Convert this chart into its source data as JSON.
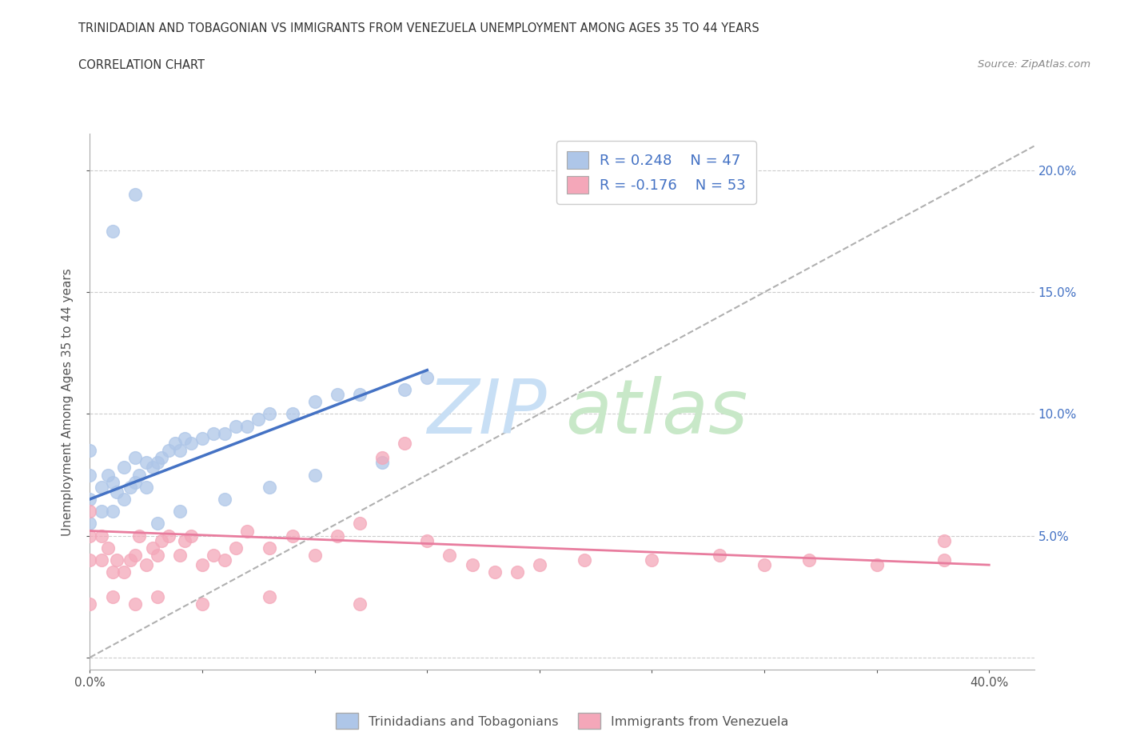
{
  "title_line1": "TRINIDADIAN AND TOBAGONIAN VS IMMIGRANTS FROM VENEZUELA UNEMPLOYMENT AMONG AGES 35 TO 44 YEARS",
  "title_line2": "CORRELATION CHART",
  "source_text": "Source: ZipAtlas.com",
  "ylabel": "Unemployment Among Ages 35 to 44 years",
  "xlim": [
    0.0,
    0.42
  ],
  "ylim": [
    -0.005,
    0.215
  ],
  "grid_color": "#cccccc",
  "blue_color": "#aec6e8",
  "pink_color": "#f4a7b9",
  "blue_line_color": "#4472c4",
  "pink_line_color": "#e87c9e",
  "dashed_line_color": "#b0b0b0",
  "blue_scatter_x": [
    0.0,
    0.0,
    0.0,
    0.0,
    0.005,
    0.005,
    0.008,
    0.01,
    0.01,
    0.012,
    0.015,
    0.015,
    0.018,
    0.02,
    0.02,
    0.022,
    0.025,
    0.025,
    0.028,
    0.03,
    0.032,
    0.035,
    0.038,
    0.04,
    0.042,
    0.045,
    0.05,
    0.055,
    0.06,
    0.065,
    0.07,
    0.075,
    0.08,
    0.09,
    0.1,
    0.11,
    0.12,
    0.14,
    0.15,
    0.01,
    0.02,
    0.03,
    0.04,
    0.06,
    0.08,
    0.1,
    0.13
  ],
  "blue_scatter_y": [
    0.055,
    0.065,
    0.075,
    0.085,
    0.06,
    0.07,
    0.075,
    0.06,
    0.072,
    0.068,
    0.065,
    0.078,
    0.07,
    0.072,
    0.082,
    0.075,
    0.07,
    0.08,
    0.078,
    0.08,
    0.082,
    0.085,
    0.088,
    0.085,
    0.09,
    0.088,
    0.09,
    0.092,
    0.092,
    0.095,
    0.095,
    0.098,
    0.1,
    0.1,
    0.105,
    0.108,
    0.108,
    0.11,
    0.115,
    0.175,
    0.19,
    0.055,
    0.06,
    0.065,
    0.07,
    0.075,
    0.08
  ],
  "pink_scatter_x": [
    0.0,
    0.0,
    0.0,
    0.005,
    0.005,
    0.008,
    0.01,
    0.012,
    0.015,
    0.018,
    0.02,
    0.022,
    0.025,
    0.028,
    0.03,
    0.032,
    0.035,
    0.04,
    0.042,
    0.045,
    0.05,
    0.055,
    0.06,
    0.065,
    0.07,
    0.08,
    0.09,
    0.1,
    0.11,
    0.12,
    0.13,
    0.14,
    0.15,
    0.16,
    0.17,
    0.18,
    0.19,
    0.2,
    0.22,
    0.25,
    0.28,
    0.3,
    0.32,
    0.35,
    0.38,
    0.38,
    0.0,
    0.01,
    0.02,
    0.03,
    0.05,
    0.08,
    0.12
  ],
  "pink_scatter_y": [
    0.04,
    0.05,
    0.06,
    0.04,
    0.05,
    0.045,
    0.035,
    0.04,
    0.035,
    0.04,
    0.042,
    0.05,
    0.038,
    0.045,
    0.042,
    0.048,
    0.05,
    0.042,
    0.048,
    0.05,
    0.038,
    0.042,
    0.04,
    0.045,
    0.052,
    0.045,
    0.05,
    0.042,
    0.05,
    0.055,
    0.082,
    0.088,
    0.048,
    0.042,
    0.038,
    0.035,
    0.035,
    0.038,
    0.04,
    0.04,
    0.042,
    0.038,
    0.04,
    0.038,
    0.04,
    0.048,
    0.022,
    0.025,
    0.022,
    0.025,
    0.022,
    0.025,
    0.022
  ],
  "blue_trendline_x": [
    0.0,
    0.15
  ],
  "blue_trendline_y": [
    0.065,
    0.118
  ],
  "pink_trendline_x": [
    0.0,
    0.4
  ],
  "pink_trendline_y": [
    0.052,
    0.038
  ],
  "dashed_line_x": [
    0.0,
    0.42
  ],
  "dashed_line_y": [
    0.0,
    0.21
  ],
  "legend_blue_label": "R = 0.248    N = 47",
  "legend_pink_label": "R = -0.176    N = 53",
  "bottom_legend_blue": "Trinidadians and Tobagonians",
  "bottom_legend_pink": "Immigrants from Venezuela",
  "title_color": "#333333",
  "axis_color": "#555555",
  "legend_text_color": "#4472c4",
  "right_axis_color": "#4472c4",
  "watermark_zip_color": "#c8dff5",
  "watermark_atlas_color": "#c8e8c8"
}
